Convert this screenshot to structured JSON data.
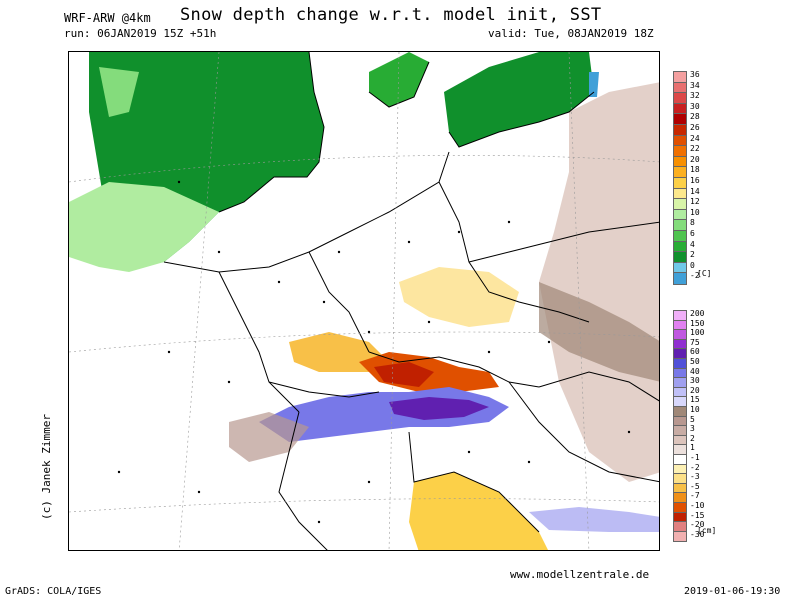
{
  "header": {
    "model": "WRF-ARW @4km",
    "title": "Snow depth change w.r.t. model init, SST",
    "run": "run: 06JAN2019 15Z +51h",
    "valid": "valid: Tue, 08JAN2019 18Z"
  },
  "footer": {
    "url": "www.modellzentrale.de",
    "credit": "(c) Janek Zimmer",
    "grads": "GrADS: COLA/IGES",
    "timestamp": "2019-01-06-19:30"
  },
  "legend_sst": {
    "unit": "[C]",
    "levels": [
      "36",
      "34",
      "32",
      "30",
      "28",
      "26",
      "24",
      "22",
      "20",
      "18",
      "16",
      "14",
      "12",
      "10",
      "8",
      "6",
      "4",
      "2",
      "0",
      "-2"
    ],
    "colors": [
      "#f4a0a0",
      "#e87070",
      "#dc4848",
      "#c82020",
      "#b00000",
      "#c82800",
      "#e05000",
      "#f07000",
      "#f89000",
      "#fcb020",
      "#fcd048",
      "#fce88c",
      "#d8f4a8",
      "#b0eca0",
      "#84dc7c",
      "#50c450",
      "#28ac34",
      "#10902c",
      "#70c8e8",
      "#40a0d8"
    ]
  },
  "legend_snow": {
    "unit": "[cm]",
    "levels": [
      "200",
      "150",
      "100",
      "75",
      "60",
      "50",
      "40",
      "30",
      "20",
      "15",
      "10",
      "5",
      "3",
      "2",
      "1",
      "-1",
      "-2",
      "-3",
      "-5",
      "-7",
      "-10",
      "-15",
      "-20",
      "-30"
    ],
    "colors": [
      "#f0b0f8",
      "#e080f0",
      "#c058e0",
      "#9030d0",
      "#6020b0",
      "#5050d8",
      "#7878e8",
      "#a0a0f0",
      "#c0c0f8",
      "#d8d8fc",
      "#a08878",
      "#b89890",
      "#c8aca4",
      "#dcc4bc",
      "#ece0dc",
      "#ffffff",
      "#fcf0b4",
      "#fce088",
      "#f8c048",
      "#f09018",
      "#e05000",
      "#c02000",
      "#e08080",
      "#f0b0b0"
    ]
  }
}
